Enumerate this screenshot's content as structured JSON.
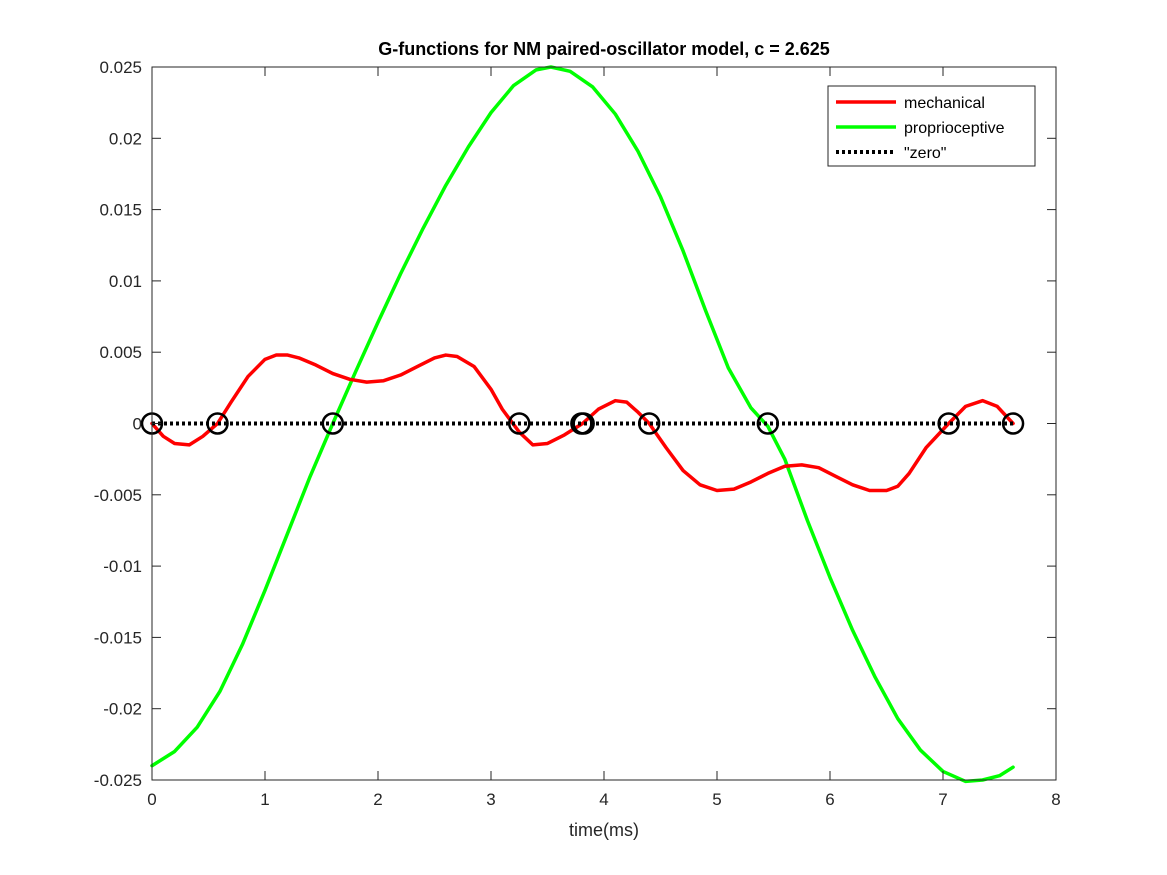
{
  "chart_data": {
    "type": "line",
    "title": "G-functions for NM paired-oscillator model, c = 2.625",
    "xlabel": "time(ms)",
    "ylabel": "",
    "xlim": [
      0,
      8
    ],
    "ylim": [
      -0.025,
      0.025
    ],
    "xticks": [
      "0",
      "1",
      "2",
      "3",
      "4",
      "5",
      "6",
      "7",
      "8"
    ],
    "yticks": [
      "-0.025",
      "-0.02",
      "-0.015",
      "-0.01",
      "-0.005",
      "0",
      "0.005",
      "0.01",
      "0.015",
      "0.02",
      "0.025"
    ],
    "grid": false,
    "legend_position": "top-right",
    "series": [
      {
        "name": "mechanical",
        "color": "#ff0000",
        "style": "solid",
        "x": [
          0,
          0.1,
          0.2,
          0.33,
          0.45,
          0.58,
          0.7,
          0.85,
          1.0,
          1.1,
          1.2,
          1.3,
          1.45,
          1.6,
          1.75,
          1.9,
          2.05,
          2.2,
          2.35,
          2.5,
          2.6,
          2.7,
          2.85,
          3.0,
          3.1,
          3.25,
          3.37,
          3.5,
          3.65,
          3.81,
          3.95,
          4.1,
          4.2,
          4.3,
          4.4,
          4.55,
          4.7,
          4.85,
          5.0,
          5.15,
          5.3,
          5.45,
          5.6,
          5.75,
          5.9,
          6.05,
          6.2,
          6.35,
          6.5,
          6.6,
          6.7,
          6.85,
          7.05,
          7.2,
          7.35,
          7.48,
          7.62
        ],
        "y": [
          0,
          -0.0009,
          -0.0014,
          -0.0015,
          -0.0009,
          0,
          0.0015,
          0.0033,
          0.0045,
          0.0048,
          0.0048,
          0.0046,
          0.0041,
          0.0035,
          0.0031,
          0.0029,
          0.003,
          0.0034,
          0.004,
          0.0046,
          0.0048,
          0.0047,
          0.004,
          0.0024,
          0.001,
          -0.0006,
          -0.0015,
          -0.0014,
          -0.0008,
          0,
          0.001,
          0.0016,
          0.0015,
          0.0008,
          0,
          -0.0017,
          -0.0033,
          -0.0043,
          -0.0047,
          -0.0046,
          -0.0041,
          -0.0035,
          -0.003,
          -0.0029,
          -0.0031,
          -0.0037,
          -0.0043,
          -0.0047,
          -0.0047,
          -0.0044,
          -0.0035,
          -0.0017,
          0,
          0.0012,
          0.0016,
          0.0012,
          0
        ]
      },
      {
        "name": "proprioceptive",
        "color": "#00ff00",
        "style": "solid",
        "x": [
          0,
          0.2,
          0.4,
          0.6,
          0.8,
          1.0,
          1.2,
          1.4,
          1.6,
          1.8,
          2.0,
          2.2,
          2.4,
          2.6,
          2.8,
          3.0,
          3.2,
          3.4,
          3.53,
          3.7,
          3.9,
          4.1,
          4.3,
          4.5,
          4.7,
          4.9,
          5.1,
          5.3,
          5.45,
          5.6,
          5.8,
          6.0,
          6.2,
          6.4,
          6.6,
          6.8,
          7.0,
          7.2,
          7.35,
          7.5,
          7.62
        ],
        "y": [
          -0.024,
          -0.023,
          -0.0213,
          -0.0188,
          -0.0155,
          -0.0117,
          -0.0077,
          -0.0037,
          0,
          0.0036,
          0.0071,
          0.0105,
          0.0137,
          0.0167,
          0.0194,
          0.0218,
          0.0237,
          0.0248,
          0.025,
          0.0247,
          0.0236,
          0.0217,
          0.0191,
          0.0159,
          0.0121,
          0.0079,
          0.0039,
          0.0011,
          -0.0002,
          -0.0025,
          -0.0068,
          -0.0108,
          -0.0145,
          -0.0178,
          -0.0207,
          -0.0229,
          -0.0244,
          -0.0251,
          -0.025,
          -0.0247,
          -0.0241
        ]
      },
      {
        "name": "\"zero\"",
        "color": "#000000",
        "style": "dotted",
        "x": [
          0,
          7.62
        ],
        "y": [
          0,
          0
        ]
      }
    ],
    "markers": {
      "color": "#000000",
      "shape": "circle",
      "x": [
        0,
        0.58,
        1.6,
        3.25,
        3.8,
        3.82,
        4.4,
        5.45,
        7.05,
        7.62
      ],
      "y": [
        0,
        0,
        0,
        0,
        0,
        0,
        0,
        0,
        0,
        0
      ]
    }
  }
}
